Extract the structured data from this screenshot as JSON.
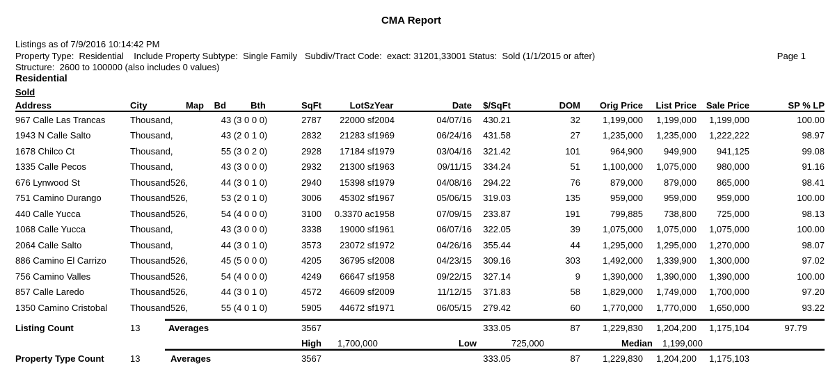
{
  "report": {
    "title": "CMA Report",
    "listings_as_of": "Listings as of 7/9/2016 10:14:42 PM",
    "criteria_line": "Property Type:  Residential    Include Property Subtype:  Single Family   Subdiv/Tract Code:  exact: 31201,33001 Status:  Sold (1/1/2015 or after)",
    "page": "Page 1",
    "structure_line": "Structure:  2600 to 100000 (also includes 0 values)",
    "section": "Residential",
    "status_group": "Sold"
  },
  "table": {
    "columns": [
      {
        "key": "address",
        "label": "Address"
      },
      {
        "key": "city",
        "label": "City"
      },
      {
        "key": "map",
        "label": "Map"
      },
      {
        "key": "bd",
        "label": "Bd"
      },
      {
        "key": "bth",
        "label": "Bth"
      },
      {
        "key": "sqft",
        "label": "SqFt"
      },
      {
        "key": "lotsz",
        "label": "LotSz"
      },
      {
        "key": "year",
        "label": "Year"
      },
      {
        "key": "date",
        "label": "Date"
      },
      {
        "key": "ppsf",
        "label": "$/SqFt"
      },
      {
        "key": "dom",
        "label": "DOM"
      },
      {
        "key": "orig_price",
        "label": "Orig Price"
      },
      {
        "key": "list_price",
        "label": "List Price"
      },
      {
        "key": "sale_price",
        "label": "Sale Price"
      },
      {
        "key": "sp_lp",
        "label": "SP % LP"
      }
    ],
    "rows": [
      {
        "address": "967 Calle Las Trancas",
        "city": "Thousand,",
        "map": "",
        "bd": "4",
        "bth": "3 (3 0 0 0)",
        "sqft": "2787",
        "lotsz": "22000 sf",
        "year": "2004",
        "date": "04/07/16",
        "ppsf": "430.21",
        "dom": "32",
        "orig_price": "1,199,000",
        "list_price": "1,199,000",
        "sale_price": "1,199,000",
        "sp_lp": "100.00"
      },
      {
        "address": "1943 N Calle Salto",
        "city": "Thousand,",
        "map": "",
        "bd": "4",
        "bth": "3 (2 0 1 0)",
        "sqft": "2832",
        "lotsz": "21283 sf",
        "year": "1969",
        "date": "06/24/16",
        "ppsf": "431.58",
        "dom": "27",
        "orig_price": "1,235,000",
        "list_price": "1,235,000",
        "sale_price": "1,222,222",
        "sp_lp": "98.97"
      },
      {
        "address": "1678 Chilco Ct",
        "city": "Thousand,",
        "map": "",
        "bd": "5",
        "bth": "5 (3 0 2 0)",
        "sqft": "2928",
        "lotsz": "17184 sf",
        "year": "1979",
        "date": "03/04/16",
        "ppsf": "321.42",
        "dom": "101",
        "orig_price": "964,900",
        "list_price": "949,900",
        "sale_price": "941,125",
        "sp_lp": "99.08"
      },
      {
        "address": "1335 Calle Pecos",
        "city": "Thousand,",
        "map": "",
        "bd": "4",
        "bth": "3 (3 0 0 0)",
        "sqft": "2932",
        "lotsz": "21300 sf",
        "year": "1963",
        "date": "09/11/15",
        "ppsf": "334.24",
        "dom": "51",
        "orig_price": "1,100,000",
        "list_price": "1,075,000",
        "sale_price": "980,000",
        "sp_lp": "91.16"
      },
      {
        "address": "676 Lynwood St",
        "city": "Thousand526,",
        "map": "",
        "bd": "4",
        "bth": "4 (3 0 1 0)",
        "sqft": "2940",
        "lotsz": "15398 sf",
        "year": "1979",
        "date": "04/08/16",
        "ppsf": "294.22",
        "dom": "76",
        "orig_price": "879,000",
        "list_price": "879,000",
        "sale_price": "865,000",
        "sp_lp": "98.41"
      },
      {
        "address": "751 Camino Durango",
        "city": "Thousand526,",
        "map": "",
        "bd": "5",
        "bth": "3 (2 0 1 0)",
        "sqft": "3006",
        "lotsz": "45302 sf",
        "year": "1967",
        "date": "05/06/15",
        "ppsf": "319.03",
        "dom": "135",
        "orig_price": "959,000",
        "list_price": "959,000",
        "sale_price": "959,000",
        "sp_lp": "100.00"
      },
      {
        "address": "440 Calle Yucca",
        "city": "Thousand526,",
        "map": "",
        "bd": "5",
        "bth": "4 (4 0 0 0)",
        "sqft": "3100",
        "lotsz": "0.3370 ac",
        "year": "1958",
        "date": "07/09/15",
        "ppsf": "233.87",
        "dom": "191",
        "orig_price": "799,885",
        "list_price": "738,800",
        "sale_price": "725,000",
        "sp_lp": "98.13"
      },
      {
        "address": "1068 Calle Yucca",
        "city": "Thousand,",
        "map": "",
        "bd": "4",
        "bth": "3 (3 0 0 0)",
        "sqft": "3338",
        "lotsz": "19000 sf",
        "year": "1961",
        "date": "06/07/16",
        "ppsf": "322.05",
        "dom": "39",
        "orig_price": "1,075,000",
        "list_price": "1,075,000",
        "sale_price": "1,075,000",
        "sp_lp": "100.00"
      },
      {
        "address": "2064 Calle Salto",
        "city": "Thousand,",
        "map": "",
        "bd": "4",
        "bth": "4 (3 0 1 0)",
        "sqft": "3573",
        "lotsz": "23072 sf",
        "year": "1972",
        "date": "04/26/16",
        "ppsf": "355.44",
        "dom": "44",
        "orig_price": "1,295,000",
        "list_price": "1,295,000",
        "sale_price": "1,270,000",
        "sp_lp": "98.07"
      },
      {
        "address": "886 Camino El Carrizo",
        "city": "Thousand526,",
        "map": "",
        "bd": "4",
        "bth": "5 (5 0 0 0)",
        "sqft": "4205",
        "lotsz": "36795 sf",
        "year": "2008",
        "date": "04/23/15",
        "ppsf": "309.16",
        "dom": "303",
        "orig_price": "1,492,000",
        "list_price": "1,339,900",
        "sale_price": "1,300,000",
        "sp_lp": "97.02"
      },
      {
        "address": "756 Camino Valles",
        "city": "Thousand526,",
        "map": "",
        "bd": "5",
        "bth": "4 (4 0 0 0)",
        "sqft": "4249",
        "lotsz": "66647 sf",
        "year": "1958",
        "date": "09/22/15",
        "ppsf": "327.14",
        "dom": "9",
        "orig_price": "1,390,000",
        "list_price": "1,390,000",
        "sale_price": "1,390,000",
        "sp_lp": "100.00"
      },
      {
        "address": "857 Calle Laredo",
        "city": "Thousand526,",
        "map": "",
        "bd": "4",
        "bth": "4 (3 0 1 0)",
        "sqft": "4572",
        "lotsz": "46609 sf",
        "year": "2009",
        "date": "11/12/15",
        "ppsf": "371.83",
        "dom": "58",
        "orig_price": "1,829,000",
        "list_price": "1,749,000",
        "sale_price": "1,700,000",
        "sp_lp": "97.20"
      },
      {
        "address": "1350 Camino Cristobal",
        "city": "Thousand526,",
        "map": "",
        "bd": "5",
        "bth": "5 (4 0 1 0)",
        "sqft": "5905",
        "lotsz": "44672 sf",
        "year": "1971",
        "date": "06/05/15",
        "ppsf": "279.42",
        "dom": "60",
        "orig_price": "1,770,000",
        "list_price": "1,770,000",
        "sale_price": "1,650,000",
        "sp_lp": "93.22"
      }
    ]
  },
  "summary": {
    "listing_count": {
      "label": "Listing Count",
      "value": "13",
      "averages_label": "Averages",
      "sqft": "3567",
      "ppsf": "333.05",
      "dom": "87",
      "orig_price": "1,229,830",
      "list_price": "1,204,200",
      "sale_price": "1,175,104",
      "sp_lp": "97.79"
    },
    "extremes": {
      "high_label": "High",
      "high_value": "1,700,000",
      "low_label": "Low",
      "low_value": "725,000",
      "median_label": "Median",
      "median_value": "1,199,000"
    },
    "property_type_count": {
      "label": "Property Type Count",
      "value": "13",
      "averages_label": "Averages",
      "sqft": "3567",
      "ppsf": "333.05",
      "dom": "87",
      "orig_price": "1,229,830",
      "list_price": "1,204,200",
      "sale_price": "1,175,103"
    }
  }
}
